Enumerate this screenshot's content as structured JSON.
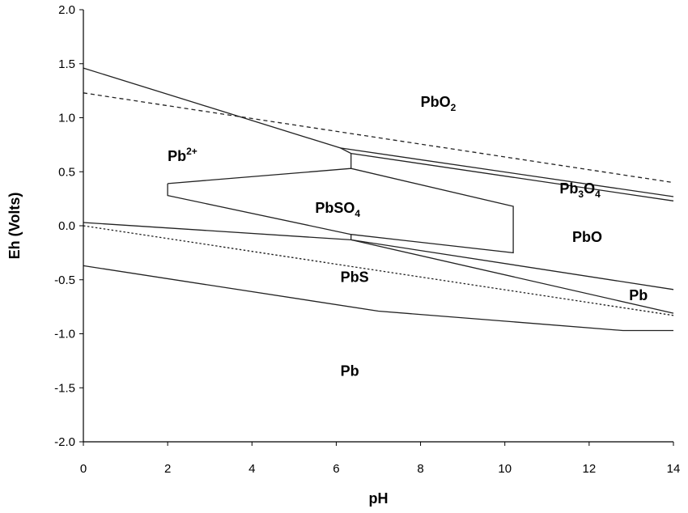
{
  "chart_data": {
    "type": "line",
    "title": "",
    "xlabel": "pH",
    "ylabel": "Eh (Volts)",
    "xlim": [
      0,
      14
    ],
    "ylim": [
      -2.0,
      2.0
    ],
    "x_ticks": [
      0,
      2,
      4,
      6,
      8,
      10,
      12,
      14
    ],
    "x_tick_labels": [
      "0",
      "2",
      "4",
      "6",
      "8",
      "10",
      "12",
      "14"
    ],
    "y_ticks": [
      2.0,
      1.5,
      1.0,
      0.5,
      0.0,
      -0.5,
      -1.0,
      -1.5,
      -2.0
    ],
    "y_tick_labels": [
      "2.0",
      "1.5",
      "1.0",
      "0.5",
      "0.0",
      "-0.5",
      "-1.0",
      "-1.5",
      "-2.0"
    ],
    "grid": false,
    "legend": "none",
    "series": [
      {
        "style": "solid",
        "points": [
          [
            0,
            1.46
          ],
          [
            6.1,
            0.72
          ],
          [
            6.35,
            0.67
          ],
          [
            14,
            0.23
          ]
        ]
      },
      {
        "style": "solid",
        "points": [
          [
            6.1,
            0.72
          ],
          [
            14,
            0.27
          ]
        ]
      },
      {
        "style": "solid",
        "points": [
          [
            6.35,
            0.67
          ],
          [
            6.35,
            0.53
          ]
        ]
      },
      {
        "style": "solid",
        "points": [
          [
            2.0,
            0.39
          ],
          [
            6.35,
            0.53
          ],
          [
            10.2,
            0.18
          ],
          [
            10.2,
            -0.25
          ],
          [
            6.35,
            -0.08
          ],
          [
            2.0,
            0.28
          ],
          [
            2.0,
            0.39
          ]
        ]
      },
      {
        "style": "solid",
        "points": [
          [
            0,
            0.03
          ],
          [
            6.35,
            -0.13
          ],
          [
            14,
            -0.59
          ]
        ]
      },
      {
        "style": "solid",
        "points": [
          [
            6.35,
            -0.08
          ],
          [
            6.35,
            -0.13
          ],
          [
            14,
            -0.81
          ]
        ]
      },
      {
        "style": "solid",
        "points": [
          [
            0,
            -0.37
          ],
          [
            7.0,
            -0.79
          ],
          [
            12.8,
            -0.97
          ],
          [
            14,
            -0.97
          ]
        ]
      },
      {
        "style": "dashed",
        "points": [
          [
            0,
            1.23
          ],
          [
            14,
            0.4
          ]
        ]
      },
      {
        "style": "dotted",
        "points": [
          [
            0,
            0.0
          ],
          [
            14,
            -0.83
          ]
        ]
      }
    ],
    "region_labels": [
      {
        "text": "PbO",
        "sub": "2",
        "sup": "",
        "x": 8.0,
        "y": 1.1
      },
      {
        "text": "Pb",
        "sub": "",
        "sup": "2+",
        "x": 2.0,
        "y": 0.6
      },
      {
        "text": "Pb",
        "sub": "3",
        "sup": "",
        "tail": "O",
        "tail_sub": "4",
        "x": 11.3,
        "y": 0.3
      },
      {
        "text": "PbSO",
        "sub": "4",
        "sup": "",
        "x": 5.5,
        "y": 0.12
      },
      {
        "text": "PbO",
        "sub": "",
        "sup": "",
        "x": 11.6,
        "y": -0.15
      },
      {
        "text": "PbS",
        "sub": "",
        "sup": "",
        "x": 6.1,
        "y": -0.52
      },
      {
        "text": "Pb",
        "sub": "",
        "sup": "",
        "x": 12.95,
        "y": -0.69
      },
      {
        "text": "Pb",
        "sub": "",
        "sup": "",
        "x": 6.1,
        "y": -1.39
      }
    ]
  }
}
